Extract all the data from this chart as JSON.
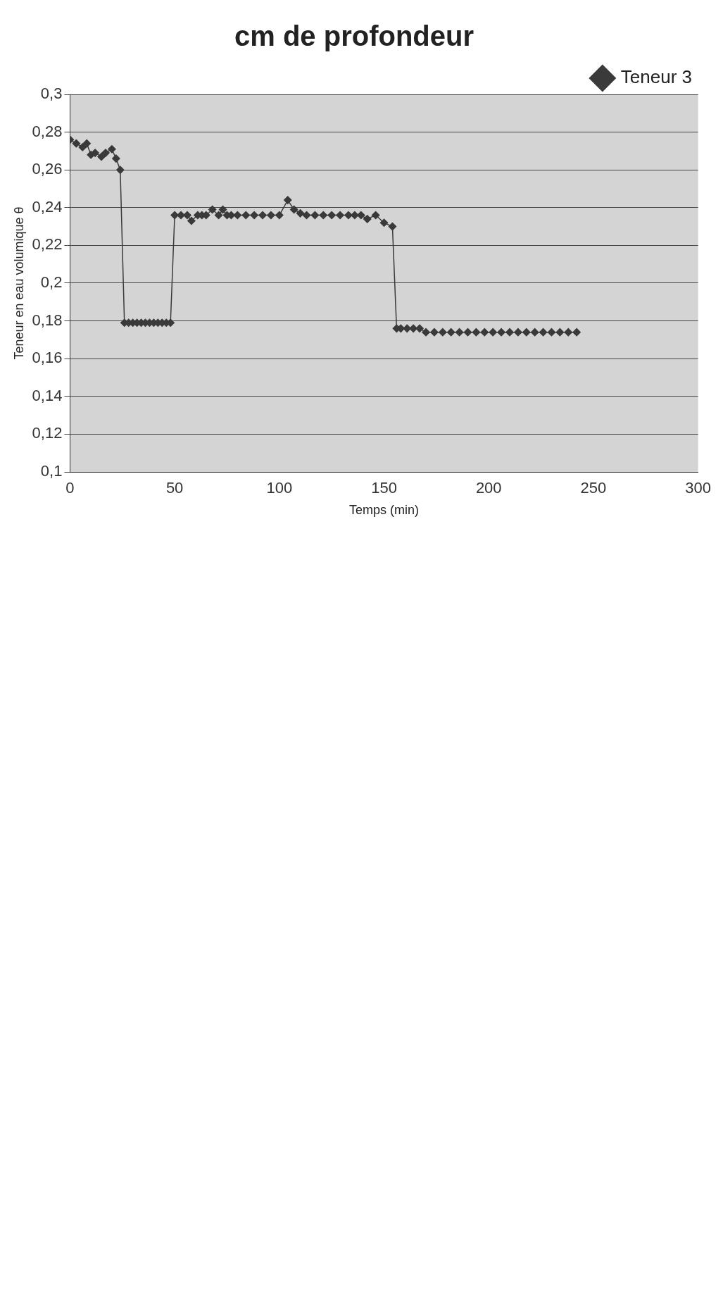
{
  "chart_data": {
    "type": "line",
    "title": "cm de profondeur",
    "xlabel": "Temps (min)",
    "ylabel": "Teneur en eau volumique θ",
    "series": [
      {
        "name": "Teneur 3",
        "color": "#3a3a3a",
        "x": [
          0,
          3,
          6,
          8,
          10,
          12,
          15,
          17,
          20,
          22,
          24,
          26,
          28,
          30,
          32,
          34,
          36,
          38,
          40,
          42,
          44,
          46,
          48,
          50,
          53,
          56,
          58,
          61,
          63,
          65,
          68,
          71,
          73,
          75,
          77,
          80,
          84,
          88,
          92,
          96,
          100,
          104,
          107,
          110,
          113,
          117,
          121,
          125,
          129,
          133,
          136,
          139,
          142,
          146,
          150,
          154,
          156,
          158,
          161,
          164,
          167,
          170,
          174,
          178,
          182,
          186,
          190,
          194,
          198,
          202,
          206,
          210,
          214,
          218,
          222,
          226,
          230,
          234,
          238,
          242
        ],
        "values": [
          0.276,
          0.274,
          0.272,
          0.274,
          0.268,
          0.269,
          0.267,
          0.269,
          0.271,
          0.266,
          0.26,
          0.179,
          0.179,
          0.179,
          0.179,
          0.179,
          0.179,
          0.179,
          0.179,
          0.179,
          0.179,
          0.179,
          0.179,
          0.236,
          0.236,
          0.236,
          0.233,
          0.236,
          0.236,
          0.236,
          0.239,
          0.236,
          0.239,
          0.236,
          0.236,
          0.236,
          0.236,
          0.236,
          0.236,
          0.236,
          0.236,
          0.244,
          0.239,
          0.237,
          0.236,
          0.236,
          0.236,
          0.236,
          0.236,
          0.236,
          0.236,
          0.236,
          0.234,
          0.236,
          0.232,
          0.23,
          0.176,
          0.176,
          0.176,
          0.176,
          0.176,
          0.174,
          0.174,
          0.174,
          0.174,
          0.174,
          0.174,
          0.174,
          0.174,
          0.174,
          0.174,
          0.174,
          0.174,
          0.174,
          0.174,
          0.174,
          0.174,
          0.174,
          0.174,
          0.174
        ]
      }
    ],
    "xlim": [
      0,
      300
    ],
    "xticks": [
      0,
      50,
      100,
      150,
      200,
      250,
      300
    ],
    "ylim": [
      0.1,
      0.3
    ],
    "yticks": [
      {
        "value": 0.1,
        "label": "0,1"
      },
      {
        "value": 0.12,
        "label": "0,12"
      },
      {
        "value": 0.14,
        "label": "0,14"
      },
      {
        "value": 0.16,
        "label": "0,16"
      },
      {
        "value": 0.18,
        "label": "0,18"
      },
      {
        "value": 0.2,
        "label": "0,2"
      },
      {
        "value": 0.22,
        "label": "0,22"
      },
      {
        "value": 0.24,
        "label": "0,24"
      },
      {
        "value": 0.26,
        "label": "0,26"
      },
      {
        "value": 0.28,
        "label": "0,28"
      },
      {
        "value": 0.3,
        "label": "0,3"
      }
    ],
    "grid": "y",
    "legend": "top right",
    "marker": "diamond"
  }
}
